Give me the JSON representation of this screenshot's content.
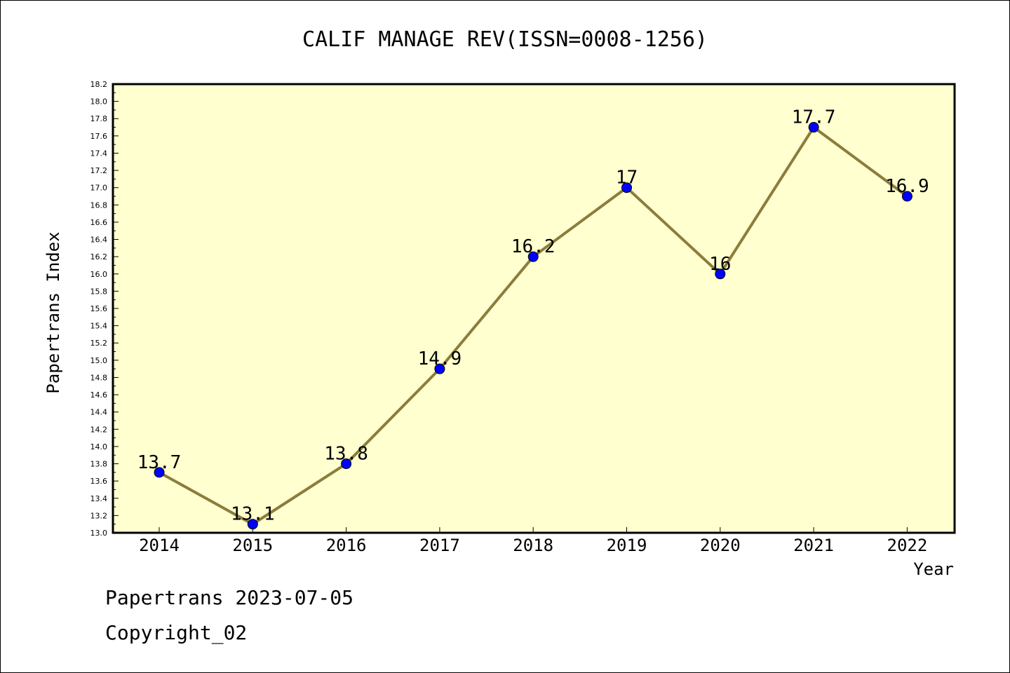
{
  "chart_data": {
    "type": "line",
    "title": "CALIF MANAGE REV(ISSN=0008-1256)",
    "xlabel": "Year",
    "ylabel": "Papertrans Index",
    "categories": [
      "2014",
      "2015",
      "2016",
      "2017",
      "2018",
      "2019",
      "2020",
      "2021",
      "2022"
    ],
    "series": [
      {
        "values": [
          13.7,
          13.1,
          13.8,
          14.9,
          16.2,
          17.0,
          16.0,
          17.7,
          16.9
        ],
        "labels": [
          "13.7",
          "13.1",
          "13.8",
          "14.9",
          "16.2",
          "17",
          "16",
          "17.7",
          "16.9"
        ]
      }
    ],
    "ylim": [
      13.0,
      18.2
    ],
    "ytick_step": 0.2,
    "grid": false,
    "colors": {
      "plot_background": "#ffffd0",
      "line": "#8b7d3a",
      "marker": "#0000ff"
    }
  },
  "footer": {
    "line1": "Papertrans 2023-07-05",
    "line2": "Copyright_02"
  }
}
